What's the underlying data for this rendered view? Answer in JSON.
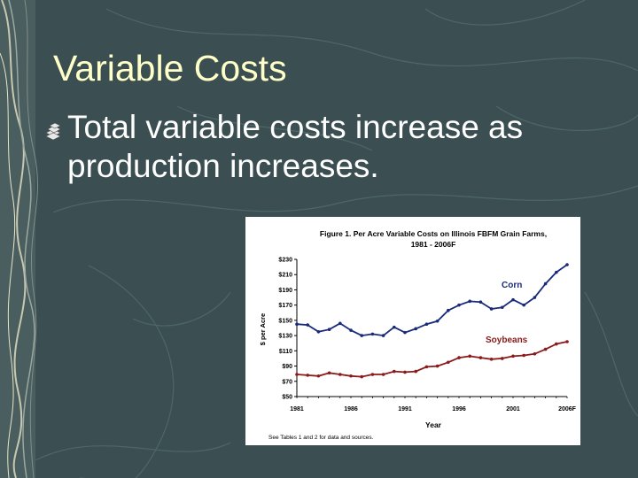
{
  "slide": {
    "title": "Variable Costs",
    "bullet": "Total variable costs increase as production increases."
  },
  "chart_data": {
    "type": "line",
    "title_line1": "Figure 1.  Per Acre Variable Costs on Illinois FBFM Grain Farms,",
    "title_line2": "1981 - 2006F",
    "xlabel": "Year",
    "ylabel": "$ per Acre",
    "ylim": [
      50,
      230
    ],
    "yticks": [
      50,
      70,
      90,
      110,
      130,
      150,
      170,
      190,
      210,
      230
    ],
    "ytick_labels": [
      "$50",
      "$70",
      "$90",
      "$110",
      "$130",
      "$150",
      "$170",
      "$190",
      "$210",
      "$230"
    ],
    "xticks": [
      1981,
      1986,
      1991,
      1996,
      2001,
      2006
    ],
    "xtick_labels": [
      "1981",
      "1986",
      "1991",
      "1996",
      "2001",
      "2006F"
    ],
    "x": [
      1981,
      1982,
      1983,
      1984,
      1985,
      1986,
      1987,
      1988,
      1989,
      1990,
      1991,
      1992,
      1993,
      1994,
      1995,
      1996,
      1997,
      1998,
      1999,
      2000,
      2001,
      2002,
      2003,
      2004,
      2005,
      2006
    ],
    "grid": false,
    "series": [
      {
        "name": "Corn",
        "color": "#1a2a7a",
        "values": [
          145,
          144,
          135,
          138,
          146,
          137,
          130,
          132,
          130,
          141,
          134,
          139,
          145,
          149,
          163,
          170,
          175,
          174,
          165,
          167,
          177,
          170,
          180,
          198,
          213,
          223
        ]
      },
      {
        "name": "Soybeans",
        "color": "#8b1a1a",
        "values": [
          79,
          78,
          77,
          81,
          79,
          77,
          76,
          79,
          79,
          83,
          82,
          83,
          89,
          90,
          95,
          101,
          103,
          101,
          99,
          100,
          103,
          104,
          106,
          112,
          119,
          122
        ]
      }
    ],
    "footnote": "See Tables 1 and 2 for data and sources."
  }
}
